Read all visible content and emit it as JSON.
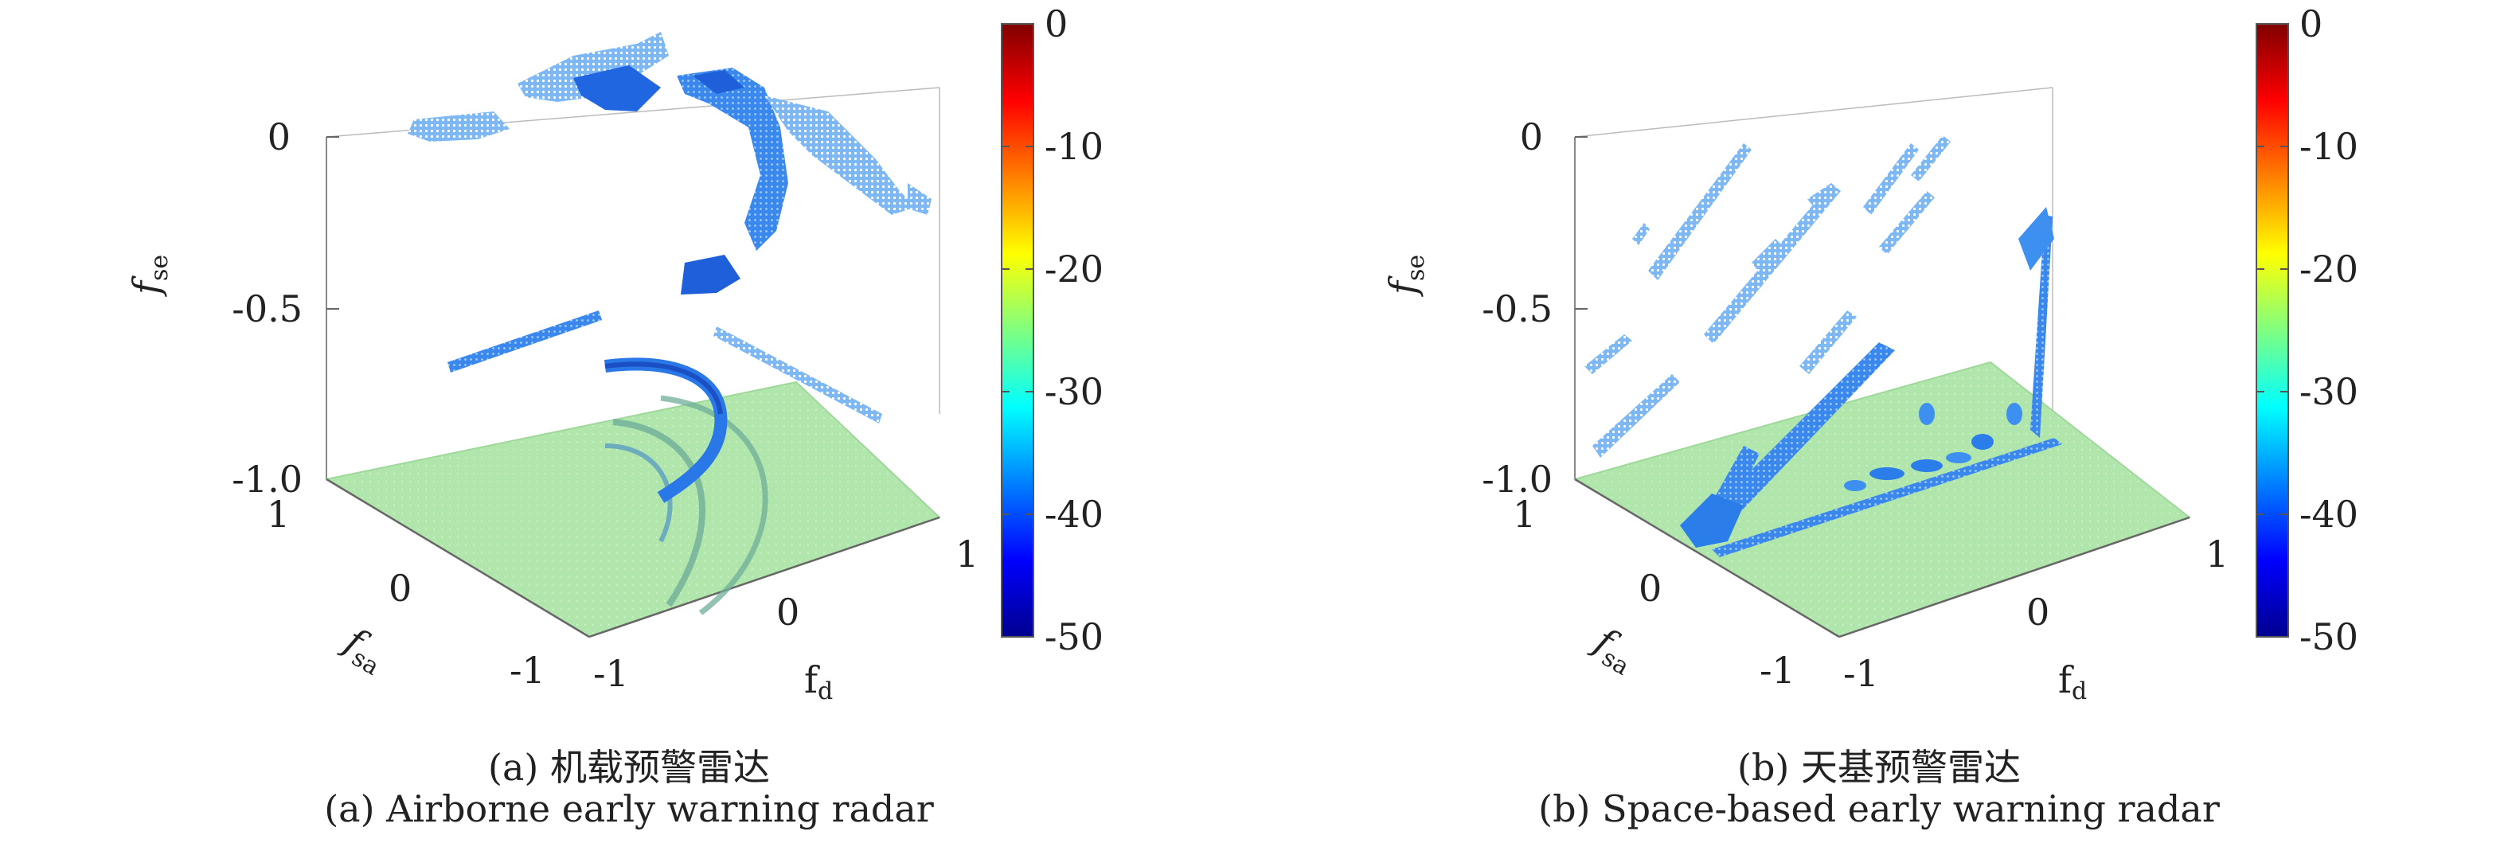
{
  "chart_data": [
    {
      "type": "3d-surface",
      "axes": {
        "x": {
          "label_main": "f",
          "label_sub": "d",
          "ticks": [
            "-1",
            "0",
            "1"
          ]
        },
        "y": {
          "label_main": "f",
          "label_sub": "sa",
          "ticks": [
            "1",
            "0",
            "-1"
          ]
        },
        "z": {
          "label_main": "f",
          "label_sub": "se",
          "ticks": [
            "0",
            "-0.5",
            "-1.0"
          ],
          "range": [
            -1,
            0
          ]
        }
      },
      "colorbar": {
        "ticks": [
          "0",
          "-10",
          "-20",
          "-30",
          "-40",
          "-50"
        ],
        "range": [
          -50,
          0
        ],
        "colormap": "jet"
      },
      "caption_cn": "(a) 机载预警雷达",
      "caption_en": "(a) Airborne early warning radar"
    },
    {
      "type": "3d-surface",
      "axes": {
        "x": {
          "label_main": "f",
          "label_sub": "d",
          "ticks": [
            "-1",
            "0",
            "1"
          ]
        },
        "y": {
          "label_main": "f",
          "label_sub": "sa",
          "ticks": [
            "1",
            "0",
            "-1"
          ]
        },
        "z": {
          "label_main": "f",
          "label_sub": "se",
          "ticks": [
            "0",
            "-0.5",
            "-1.0"
          ],
          "range": [
            -1,
            0
          ]
        }
      },
      "colorbar": {
        "ticks": [
          "0",
          "-10",
          "-20",
          "-30",
          "-40",
          "-50"
        ],
        "range": [
          -50,
          0
        ],
        "colormap": "jet"
      },
      "caption_cn": "(b) 天基预警雷达",
      "caption_en": "(b) Space-based early warning radar"
    }
  ],
  "colors": {
    "floor": "#a9e4a4",
    "floor_edge": "#8fd08a",
    "blob_dark": "#1f5fd9",
    "blob_mid": "#3d8ff0",
    "blob_light": "#8fc3f7",
    "axis": "#777777"
  }
}
